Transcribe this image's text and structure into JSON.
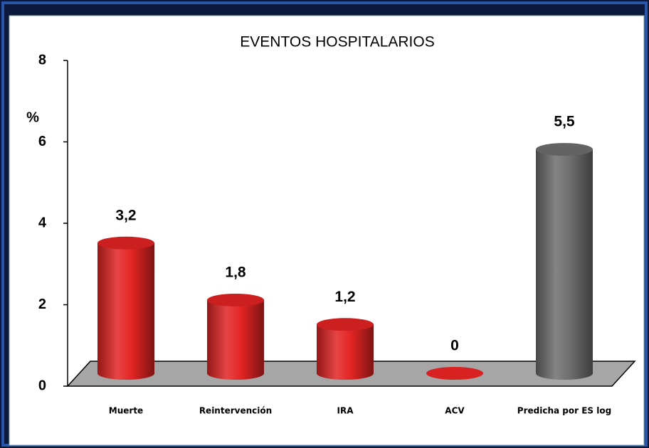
{
  "chart_data": {
    "type": "bar",
    "title": "EVENTOS HOSPITALARIOS",
    "y_label": "%",
    "categories": [
      "Muerte",
      "Reintervención",
      "IRA",
      "ACV",
      "Predicha por ES log"
    ],
    "values": [
      3.2,
      1.8,
      1.2,
      0,
      5.5
    ],
    "value_labels": [
      "3,2",
      "1,8",
      "1,2",
      "0",
      "5,5"
    ],
    "colors": [
      "#e32424",
      "#e32424",
      "#e32424",
      "#e32424",
      "#6e6e6e"
    ],
    "ylim": [
      0,
      8
    ],
    "yticks": [
      0,
      2,
      4,
      6,
      8
    ],
    "grid": false
  }
}
